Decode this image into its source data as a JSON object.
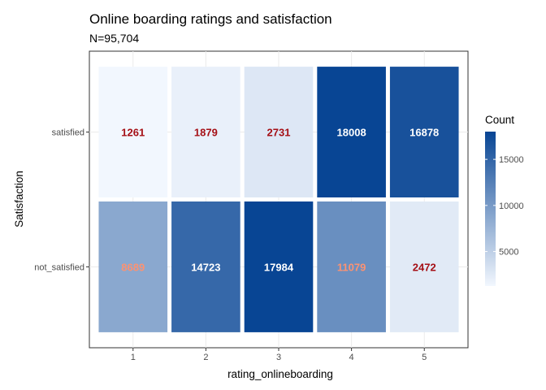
{
  "chart_data": {
    "type": "heatmap",
    "title": "Online boarding ratings and satisfaction",
    "subtitle": "N=95,704",
    "xlabel": "rating_onlineboarding",
    "ylabel": "Satisfaction",
    "x_categories": [
      "1",
      "2",
      "3",
      "4",
      "5"
    ],
    "y_categories": [
      "not_satisfied",
      "satisfied"
    ],
    "cells": [
      {
        "x": "1",
        "y": "satisfied",
        "value": 1261,
        "label": "1261"
      },
      {
        "x": "2",
        "y": "satisfied",
        "value": 1879,
        "label": "1879"
      },
      {
        "x": "3",
        "y": "satisfied",
        "value": 2731,
        "label": "2731"
      },
      {
        "x": "4",
        "y": "satisfied",
        "value": 18008,
        "label": "18008"
      },
      {
        "x": "5",
        "y": "satisfied",
        "value": 16878,
        "label": "16878"
      },
      {
        "x": "1",
        "y": "not_satisfied",
        "value": 8689,
        "label": "8689"
      },
      {
        "x": "2",
        "y": "not_satisfied",
        "value": 14723,
        "label": "14723"
      },
      {
        "x": "3",
        "y": "not_satisfied",
        "value": 17984,
        "label": "17984"
      },
      {
        "x": "4",
        "y": "not_satisfied",
        "value": 11079,
        "label": "11079"
      },
      {
        "x": "5",
        "y": "not_satisfied",
        "value": 2472,
        "label": "2472"
      }
    ],
    "legend": {
      "title": "Count",
      "position": "right",
      "ticks": [
        5000,
        10000,
        15000
      ],
      "tick_labels": [
        "5000",
        "10000",
        "15000"
      ],
      "range": [
        1261,
        18008
      ],
      "color_low": "#f2f7fe",
      "color_high": "#084594"
    },
    "label_colors": [
      "#a50f15",
      "#fc9272",
      "#ffffff"
    ],
    "grid": true
  }
}
